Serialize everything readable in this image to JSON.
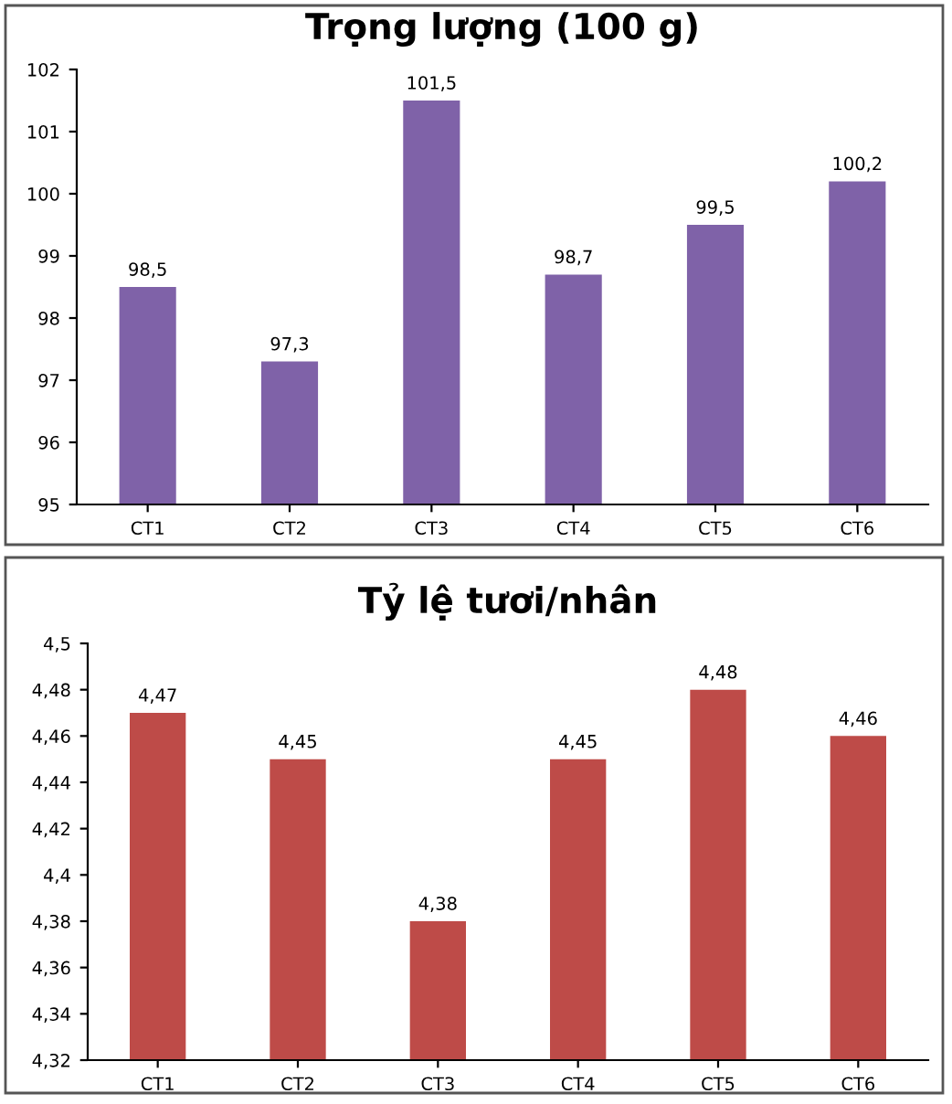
{
  "chart_data": [
    {
      "type": "bar",
      "title": "Trọng lượng (100 g)",
      "categories": [
        "CT1",
        "CT2",
        "CT3",
        "CT4",
        "CT5",
        "CT6"
      ],
      "values": [
        98.5,
        97.3,
        101.5,
        98.7,
        99.5,
        100.2
      ],
      "color": "#7f62a8",
      "value_labels": [
        "98,5",
        "97,3",
        "101,5",
        "98,7",
        "99,5",
        "100,2"
      ],
      "ylim": [
        95,
        102
      ],
      "yticks": [
        95,
        96,
        97,
        98,
        99,
        100,
        101,
        102
      ],
      "grid": false,
      "legend": false
    },
    {
      "type": "bar",
      "title": "Tỷ lệ tươi/nhân",
      "categories": [
        "CT1",
        "CT2",
        "CT3",
        "CT4",
        "CT5",
        "CT6"
      ],
      "values": [
        4.47,
        4.45,
        4.38,
        4.45,
        4.48,
        4.46
      ],
      "color": "#be4b48",
      "value_labels": [
        "4,47",
        "4,45",
        "4,38",
        "4,45",
        "4,48",
        "4,46"
      ],
      "ylim": [
        4.32,
        4.5
      ],
      "yticks": [
        {
          "value": 4.32,
          "label": "4,32"
        },
        {
          "value": 4.34,
          "label": "4,34"
        },
        {
          "value": 4.36,
          "label": "4,36"
        },
        {
          "value": 4.38,
          "label": "4,38"
        },
        {
          "value": 4.4,
          "label": "4,4"
        },
        {
          "value": 4.42,
          "label": "4,42"
        },
        {
          "value": 4.44,
          "label": "4,44"
        },
        {
          "value": 4.46,
          "label": "4,46"
        },
        {
          "value": 4.48,
          "label": "4,48"
        },
        {
          "value": 4.5,
          "label": "4,5"
        }
      ],
      "grid": false,
      "legend": false
    }
  ]
}
